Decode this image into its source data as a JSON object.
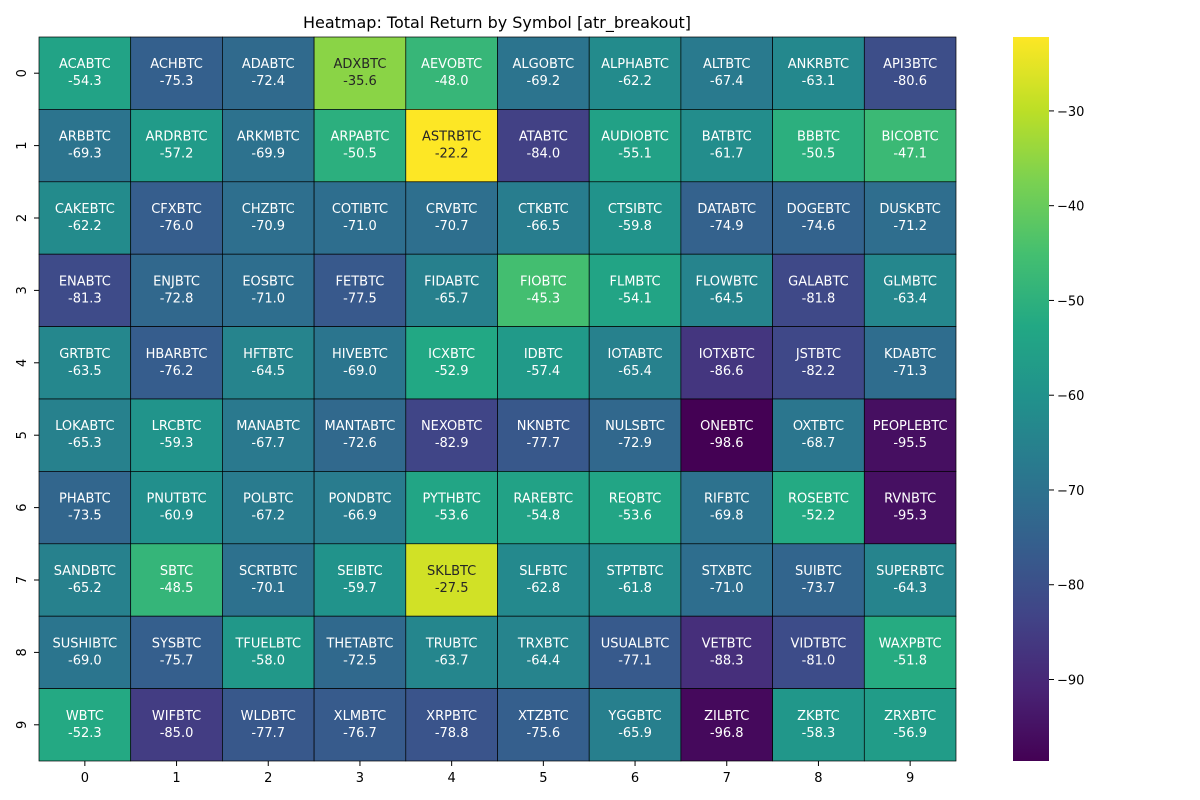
{
  "chart_data": {
    "type": "heatmap",
    "title": "Heatmap: Total Return by Symbol [atr_breakout]",
    "xlabel": "",
    "ylabel": "",
    "x_ticks": [
      "0",
      "1",
      "2",
      "3",
      "4",
      "5",
      "6",
      "7",
      "8",
      "9"
    ],
    "y_ticks": [
      "0",
      "1",
      "2",
      "3",
      "4",
      "5",
      "6",
      "7",
      "8",
      "9"
    ],
    "colormap": "viridis",
    "vmin": -98.6,
    "vmax": -22.2,
    "colorbar_ticks": [
      -30,
      -40,
      -50,
      -60,
      -70,
      -80,
      -90
    ],
    "rows": [
      [
        [
          "ACABTC",
          -54.3
        ],
        [
          "ACHBTC",
          -75.3
        ],
        [
          "ADABTC",
          -72.4
        ],
        [
          "ADXBTC",
          -35.6
        ],
        [
          "AEVOBTC",
          -48.0
        ],
        [
          "ALGOBTC",
          -69.2
        ],
        [
          "ALPHABTC",
          -62.2
        ],
        [
          "ALTBTC",
          -67.4
        ],
        [
          "ANKRBTC",
          -63.1
        ],
        [
          "API3BTC",
          -80.6
        ]
      ],
      [
        [
          "ARBBTC",
          -69.3
        ],
        [
          "ARDRBTC",
          -57.2
        ],
        [
          "ARKMBTC",
          -69.9
        ],
        [
          "ARPABTC",
          -50.5
        ],
        [
          "ASTRBTC",
          -22.2
        ],
        [
          "ATABTC",
          -84.0
        ],
        [
          "AUDIOBTC",
          -55.1
        ],
        [
          "BATBTC",
          -61.7
        ],
        [
          "BBBTC",
          -50.5
        ],
        [
          "BICOBTC",
          -47.1
        ]
      ],
      [
        [
          "CAKEBTC",
          -62.2
        ],
        [
          "CFXBTC",
          -76.0
        ],
        [
          "CHZBTC",
          -70.9
        ],
        [
          "COTIBTC",
          -71.0
        ],
        [
          "CRVBTC",
          -70.7
        ],
        [
          "CTKBTC",
          -66.5
        ],
        [
          "CTSIBTC",
          -59.8
        ],
        [
          "DATABTC",
          -74.9
        ],
        [
          "DOGEBTC",
          -74.6
        ],
        [
          "DUSKBTC",
          -71.2
        ]
      ],
      [
        [
          "ENABTC",
          -81.3
        ],
        [
          "ENJBTC",
          -72.8
        ],
        [
          "EOSBTC",
          -71.0
        ],
        [
          "FETBTC",
          -77.5
        ],
        [
          "FIDABTC",
          -65.7
        ],
        [
          "FIOBTC",
          -45.3
        ],
        [
          "FLMBTC",
          -54.1
        ],
        [
          "FLOWBTC",
          -64.5
        ],
        [
          "GALABTC",
          -81.8
        ],
        [
          "GLMBTC",
          -63.4
        ]
      ],
      [
        [
          "GRTBTC",
          -63.5
        ],
        [
          "HBARBTC",
          -76.2
        ],
        [
          "HFTBTC",
          -64.5
        ],
        [
          "HIVEBTC",
          -69.0
        ],
        [
          "ICXBTC",
          -52.9
        ],
        [
          "IDBTC",
          -57.4
        ],
        [
          "IOTABTC",
          -65.4
        ],
        [
          "IOTXBTC",
          -86.6
        ],
        [
          "JSTBTC",
          -82.2
        ],
        [
          "KDABTC",
          -71.3
        ]
      ],
      [
        [
          "LOKABTC",
          -65.3
        ],
        [
          "LRCBTC",
          -59.3
        ],
        [
          "MANABTC",
          -67.7
        ],
        [
          "MANTABTC",
          -72.6
        ],
        [
          "NEXOBTC",
          -82.9
        ],
        [
          "NKNBTC",
          -77.7
        ],
        [
          "NULSBTC",
          -72.9
        ],
        [
          "ONEBTC",
          -98.6
        ],
        [
          "OXTBTC",
          -68.7
        ],
        [
          "PEOPLEBTC",
          -95.5
        ]
      ],
      [
        [
          "PHABTC",
          -73.5
        ],
        [
          "PNUTBTC",
          -60.9
        ],
        [
          "POLBTC",
          -67.2
        ],
        [
          "PONDBTC",
          -66.9
        ],
        [
          "PYTHBTC",
          -53.6
        ],
        [
          "RAREBTC",
          -54.8
        ],
        [
          "REQBTC",
          -53.6
        ],
        [
          "RIFBTC",
          -69.8
        ],
        [
          "ROSEBTC",
          -52.2
        ],
        [
          "RVNBTC",
          -95.3
        ]
      ],
      [
        [
          "SANDBTC",
          -65.2
        ],
        [
          "SBTC",
          -48.5
        ],
        [
          "SCRTBTC",
          -70.1
        ],
        [
          "SEIBTC",
          -59.7
        ],
        [
          "SKLBTC",
          -27.5
        ],
        [
          "SLFBTC",
          -62.8
        ],
        [
          "STPTBTC",
          -61.8
        ],
        [
          "STXBTC",
          -71.0
        ],
        [
          "SUIBTC",
          -73.7
        ],
        [
          "SUPERBTC",
          -64.3
        ]
      ],
      [
        [
          "SUSHIBTC",
          -69.0
        ],
        [
          "SYSBTC",
          -75.7
        ],
        [
          "TFUELBTC",
          -58.0
        ],
        [
          "THETABTC",
          -72.5
        ],
        [
          "TRUBTC",
          -63.7
        ],
        [
          "TRXBTC",
          -64.4
        ],
        [
          "USUALBTC",
          -77.1
        ],
        [
          "VETBTC",
          -88.3
        ],
        [
          "VIDTBTC",
          -81.0
        ],
        [
          "WAXPBTC",
          -51.8
        ]
      ],
      [
        [
          "WBTC",
          -52.3
        ],
        [
          "WIFBTC",
          -85.0
        ],
        [
          "WLDBTC",
          -77.7
        ],
        [
          "XLMBTC",
          -76.7
        ],
        [
          "XRPBTC",
          -78.8
        ],
        [
          "XTZBTC",
          -75.6
        ],
        [
          "YGGBTC",
          -65.9
        ],
        [
          "ZILBTC",
          -96.8
        ],
        [
          "ZKBTC",
          -58.3
        ],
        [
          "ZRXBTC",
          -56.9
        ]
      ]
    ]
  }
}
